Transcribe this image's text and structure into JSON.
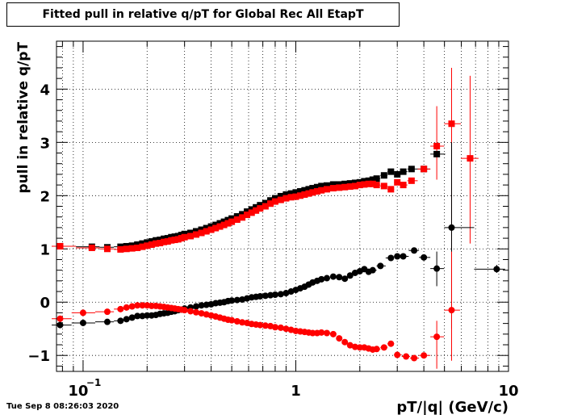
{
  "chart_data": {
    "type": "scatter",
    "title": "Fitted pull in relative q/pT for Global Rec All EtapT",
    "xlabel": "pT/|q| (GeV/c)",
    "ylabel": "pull in relative q/pT",
    "x_scale": "log",
    "xlim": [
      0.075,
      10
    ],
    "ylim": [
      -1.3,
      4.9
    ],
    "grid": true,
    "x_major_ticks": [
      {
        "value": 0.1,
        "label": "10",
        "exponent": "−1"
      },
      {
        "value": 1,
        "label": "1",
        "exponent": ""
      },
      {
        "value": 10,
        "label": "10",
        "exponent": ""
      }
    ],
    "y_ticks": [
      {
        "value": -1,
        "label": "−1"
      },
      {
        "value": 0,
        "label": "0"
      },
      {
        "value": 1,
        "label": "1"
      },
      {
        "value": 2,
        "label": "2"
      },
      {
        "value": 3,
        "label": "3"
      },
      {
        "value": 4,
        "label": "4"
      }
    ],
    "series": [
      {
        "color": "#000000",
        "marker": "square",
        "points": [
          [
            0.078,
            1.05
          ],
          [
            0.11,
            1.04
          ],
          [
            0.13,
            1.03
          ],
          [
            0.15,
            1.04
          ],
          [
            0.16,
            1.05
          ],
          [
            0.17,
            1.06
          ],
          [
            0.18,
            1.08
          ],
          [
            0.19,
            1.1
          ],
          [
            0.2,
            1.12
          ],
          [
            0.21,
            1.14
          ],
          [
            0.22,
            1.16
          ],
          [
            0.23,
            1.17
          ],
          [
            0.24,
            1.19
          ],
          [
            0.25,
            1.2
          ],
          [
            0.26,
            1.22
          ],
          [
            0.27,
            1.23
          ],
          [
            0.28,
            1.24
          ],
          [
            0.29,
            1.26
          ],
          [
            0.3,
            1.28
          ],
          [
            0.32,
            1.3
          ],
          [
            0.34,
            1.33
          ],
          [
            0.36,
            1.36
          ],
          [
            0.38,
            1.39
          ],
          [
            0.4,
            1.42
          ],
          [
            0.42,
            1.45
          ],
          [
            0.44,
            1.48
          ],
          [
            0.46,
            1.51
          ],
          [
            0.48,
            1.54
          ],
          [
            0.5,
            1.57
          ],
          [
            0.53,
            1.61
          ],
          [
            0.56,
            1.65
          ],
          [
            0.59,
            1.7
          ],
          [
            0.62,
            1.74
          ],
          [
            0.65,
            1.78
          ],
          [
            0.68,
            1.82
          ],
          [
            0.72,
            1.86
          ],
          [
            0.76,
            1.91
          ],
          [
            0.8,
            1.95
          ],
          [
            0.85,
            1.99
          ],
          [
            0.9,
            2.02
          ],
          [
            0.95,
            2.04
          ],
          [
            1.0,
            2.06
          ],
          [
            1.05,
            2.08
          ],
          [
            1.1,
            2.1
          ],
          [
            1.15,
            2.12
          ],
          [
            1.2,
            2.14
          ],
          [
            1.26,
            2.16
          ],
          [
            1.32,
            2.18
          ],
          [
            1.4,
            2.19
          ],
          [
            1.5,
            2.21
          ],
          [
            1.6,
            2.21
          ],
          [
            1.7,
            2.22
          ],
          [
            1.8,
            2.23
          ],
          [
            1.9,
            2.24
          ],
          [
            2.0,
            2.25
          ],
          [
            2.1,
            2.27
          ],
          [
            2.2,
            2.28
          ],
          [
            2.3,
            2.3
          ],
          [
            2.4,
            2.32
          ],
          [
            2.6,
            2.38
          ],
          [
            2.8,
            2.45
          ],
          [
            3.0,
            2.4
          ],
          [
            3.2,
            2.45
          ],
          [
            3.5,
            2.5
          ],
          [
            4.0,
            2.5
          ],
          [
            4.6,
            2.78
          ]
        ]
      },
      {
        "color": "#ff0000",
        "marker": "square",
        "points": [
          [
            0.078,
            1.05
          ],
          [
            0.11,
            1.02
          ],
          [
            0.13,
            1.0
          ],
          [
            0.15,
            0.99
          ],
          [
            0.16,
            1.0
          ],
          [
            0.17,
            1.01
          ],
          [
            0.18,
            1.02
          ],
          [
            0.19,
            1.04
          ],
          [
            0.2,
            1.06
          ],
          [
            0.21,
            1.08
          ],
          [
            0.22,
            1.1
          ],
          [
            0.23,
            1.11
          ],
          [
            0.24,
            1.13
          ],
          [
            0.25,
            1.14
          ],
          [
            0.26,
            1.16
          ],
          [
            0.27,
            1.17
          ],
          [
            0.28,
            1.18
          ],
          [
            0.29,
            1.2
          ],
          [
            0.3,
            1.22
          ],
          [
            0.32,
            1.24
          ],
          [
            0.34,
            1.27
          ],
          [
            0.36,
            1.3
          ],
          [
            0.38,
            1.33
          ],
          [
            0.4,
            1.36
          ],
          [
            0.42,
            1.39
          ],
          [
            0.44,
            1.42
          ],
          [
            0.46,
            1.45
          ],
          [
            0.48,
            1.48
          ],
          [
            0.5,
            1.51
          ],
          [
            0.53,
            1.55
          ],
          [
            0.56,
            1.59
          ],
          [
            0.59,
            1.64
          ],
          [
            0.62,
            1.68
          ],
          [
            0.65,
            1.72
          ],
          [
            0.68,
            1.76
          ],
          [
            0.72,
            1.8
          ],
          [
            0.76,
            1.85
          ],
          [
            0.8,
            1.89
          ],
          [
            0.85,
            1.92
          ],
          [
            0.9,
            1.95
          ],
          [
            0.95,
            1.97
          ],
          [
            1.0,
            1.98
          ],
          [
            1.05,
            2.0
          ],
          [
            1.1,
            2.02
          ],
          [
            1.15,
            2.04
          ],
          [
            1.2,
            2.06
          ],
          [
            1.26,
            2.08
          ],
          [
            1.32,
            2.1
          ],
          [
            1.4,
            2.12
          ],
          [
            1.5,
            2.14
          ],
          [
            1.6,
            2.15
          ],
          [
            1.7,
            2.16
          ],
          [
            1.8,
            2.17
          ],
          [
            1.9,
            2.18
          ],
          [
            2.0,
            2.2
          ],
          [
            2.1,
            2.21
          ],
          [
            2.2,
            2.22
          ],
          [
            2.3,
            2.22
          ],
          [
            2.4,
            2.2
          ],
          [
            2.6,
            2.18
          ],
          [
            2.8,
            2.12
          ],
          [
            3.0,
            2.25
          ],
          [
            3.2,
            2.2
          ],
          [
            3.5,
            2.28
          ],
          [
            4.0,
            2.5
          ],
          [
            4.6,
            2.93
          ],
          [
            5.4,
            3.35
          ],
          [
            6.6,
            2.7
          ]
        ],
        "errors": [
          {
            "x": 4.6,
            "lo": 2.3,
            "hi": 3.68
          },
          {
            "x": 5.4,
            "lo": 1.0,
            "hi": 4.4
          },
          {
            "x": 6.6,
            "lo": 1.1,
            "hi": 4.25
          }
        ]
      },
      {
        "color": "#000000",
        "marker": "circle",
        "points": [
          [
            0.078,
            -0.43
          ],
          [
            0.1,
            -0.39
          ],
          [
            0.13,
            -0.37
          ],
          [
            0.15,
            -0.35
          ],
          [
            0.16,
            -0.32
          ],
          [
            0.17,
            -0.29
          ],
          [
            0.18,
            -0.26
          ],
          [
            0.19,
            -0.26
          ],
          [
            0.2,
            -0.25
          ],
          [
            0.21,
            -0.25
          ],
          [
            0.22,
            -0.24
          ],
          [
            0.23,
            -0.22
          ],
          [
            0.24,
            -0.21
          ],
          [
            0.25,
            -0.2
          ],
          [
            0.26,
            -0.18
          ],
          [
            0.27,
            -0.17
          ],
          [
            0.28,
            -0.15
          ],
          [
            0.29,
            -0.14
          ],
          [
            0.3,
            -0.12
          ],
          [
            0.32,
            -0.1
          ],
          [
            0.34,
            -0.08
          ],
          [
            0.36,
            -0.06
          ],
          [
            0.38,
            -0.05
          ],
          [
            0.4,
            -0.04
          ],
          [
            0.42,
            -0.02
          ],
          [
            0.44,
            -0.01
          ],
          [
            0.46,
            0.0
          ],
          [
            0.48,
            0.02
          ],
          [
            0.5,
            0.03
          ],
          [
            0.53,
            0.04
          ],
          [
            0.56,
            0.05
          ],
          [
            0.59,
            0.07
          ],
          [
            0.62,
            0.09
          ],
          [
            0.65,
            0.1
          ],
          [
            0.68,
            0.11
          ],
          [
            0.72,
            0.12
          ],
          [
            0.76,
            0.13
          ],
          [
            0.8,
            0.14
          ],
          [
            0.85,
            0.15
          ],
          [
            0.9,
            0.17
          ],
          [
            0.95,
            0.2
          ],
          [
            1.0,
            0.23
          ],
          [
            1.05,
            0.26
          ],
          [
            1.1,
            0.29
          ],
          [
            1.15,
            0.33
          ],
          [
            1.2,
            0.37
          ],
          [
            1.26,
            0.4
          ],
          [
            1.32,
            0.43
          ],
          [
            1.4,
            0.45
          ],
          [
            1.5,
            0.48
          ],
          [
            1.6,
            0.47
          ],
          [
            1.7,
            0.44
          ],
          [
            1.8,
            0.5
          ],
          [
            1.9,
            0.55
          ],
          [
            2.0,
            0.58
          ],
          [
            2.1,
            0.62
          ],
          [
            2.2,
            0.57
          ],
          [
            2.3,
            0.6
          ],
          [
            2.5,
            0.68
          ],
          [
            2.8,
            0.83
          ],
          [
            3.0,
            0.86
          ],
          [
            3.2,
            0.86
          ],
          [
            3.6,
            0.97
          ],
          [
            4.0,
            0.84
          ],
          [
            4.6,
            0.63
          ],
          [
            5.4,
            1.4
          ],
          [
            8.8,
            0.62
          ]
        ],
        "errors": [
          {
            "x": 4.6,
            "lo": 0.3,
            "hi": 0.95
          },
          {
            "x": 5.4,
            "lo": -0.5,
            "hi": 3.0
          },
          {
            "x": 8.8,
            "lo": 0.55,
            "hi": 0.7
          }
        ]
      },
      {
        "color": "#ff0000",
        "marker": "circle",
        "points": [
          [
            0.078,
            -0.31
          ],
          [
            0.1,
            -0.2
          ],
          [
            0.13,
            -0.18
          ],
          [
            0.15,
            -0.13
          ],
          [
            0.16,
            -0.1
          ],
          [
            0.17,
            -0.08
          ],
          [
            0.18,
            -0.06
          ],
          [
            0.19,
            -0.06
          ],
          [
            0.2,
            -0.06
          ],
          [
            0.21,
            -0.07
          ],
          [
            0.22,
            -0.07
          ],
          [
            0.23,
            -0.08
          ],
          [
            0.24,
            -0.09
          ],
          [
            0.25,
            -0.1
          ],
          [
            0.26,
            -0.11
          ],
          [
            0.27,
            -0.12
          ],
          [
            0.28,
            -0.13
          ],
          [
            0.29,
            -0.14
          ],
          [
            0.3,
            -0.15
          ],
          [
            0.32,
            -0.17
          ],
          [
            0.34,
            -0.19
          ],
          [
            0.36,
            -0.21
          ],
          [
            0.38,
            -0.23
          ],
          [
            0.4,
            -0.25
          ],
          [
            0.42,
            -0.27
          ],
          [
            0.44,
            -0.29
          ],
          [
            0.46,
            -0.31
          ],
          [
            0.48,
            -0.33
          ],
          [
            0.5,
            -0.34
          ],
          [
            0.53,
            -0.36
          ],
          [
            0.56,
            -0.38
          ],
          [
            0.59,
            -0.39
          ],
          [
            0.62,
            -0.41
          ],
          [
            0.65,
            -0.42
          ],
          [
            0.68,
            -0.43
          ],
          [
            0.72,
            -0.44
          ],
          [
            0.76,
            -0.45
          ],
          [
            0.8,
            -0.47
          ],
          [
            0.85,
            -0.48
          ],
          [
            0.9,
            -0.5
          ],
          [
            0.95,
            -0.52
          ],
          [
            1.0,
            -0.54
          ],
          [
            1.05,
            -0.55
          ],
          [
            1.1,
            -0.56
          ],
          [
            1.15,
            -0.57
          ],
          [
            1.2,
            -0.58
          ],
          [
            1.26,
            -0.58
          ],
          [
            1.32,
            -0.57
          ],
          [
            1.4,
            -0.58
          ],
          [
            1.5,
            -0.6
          ],
          [
            1.6,
            -0.68
          ],
          [
            1.7,
            -0.75
          ],
          [
            1.8,
            -0.81
          ],
          [
            1.9,
            -0.84
          ],
          [
            2.0,
            -0.85
          ],
          [
            2.1,
            -0.85
          ],
          [
            2.2,
            -0.87
          ],
          [
            2.3,
            -0.89
          ],
          [
            2.4,
            -0.88
          ],
          [
            2.6,
            -0.85
          ],
          [
            2.8,
            -0.78
          ],
          [
            3.0,
            -0.99
          ],
          [
            3.3,
            -1.02
          ],
          [
            3.6,
            -1.05
          ],
          [
            4.0,
            -1.0
          ],
          [
            4.6,
            -0.65
          ],
          [
            5.4,
            -0.15
          ]
        ],
        "errors": [
          {
            "x": 4.6,
            "lo": -1.25,
            "hi": -0.35
          },
          {
            "x": 5.4,
            "lo": -1.1,
            "hi": 0.95
          }
        ]
      }
    ]
  },
  "footer": {
    "timestamp": "Tue Sep  8 08:26:03 2020"
  }
}
